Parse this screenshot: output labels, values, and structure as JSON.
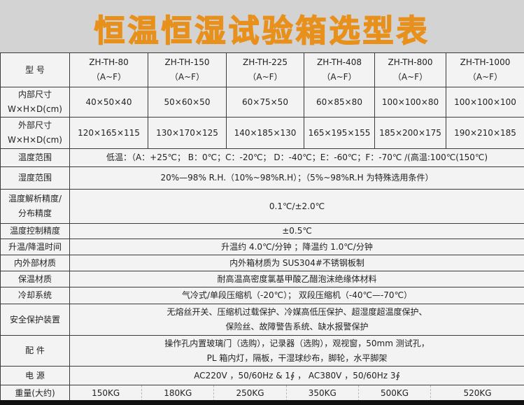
{
  "title": "恒温恒湿试验箱选型表",
  "colors": {
    "title": "#e8901c",
    "background": "#d3d3d3",
    "table_bg": "#f3f3f3"
  },
  "header": {
    "label": "型 号",
    "models": [
      [
        "ZH-TH-80",
        "（A~F）"
      ],
      [
        "ZH-TH-150",
        "（A~F）"
      ],
      [
        "ZH-TH-225",
        "（A~F）"
      ],
      [
        "ZH-TH-408",
        "（A~F）"
      ],
      [
        "ZH-TH-800",
        "（A~F）"
      ],
      [
        "ZH-TH-1000",
        "（A~F）"
      ]
    ]
  },
  "inner": {
    "label": [
      "内部尺寸",
      "W×H×D(cm)"
    ],
    "values": [
      "40×50×40",
      "50×60×50",
      "60×75×50",
      "60×85×80",
      "100×100×80",
      "100×100×100"
    ]
  },
  "outer": {
    "label": [
      "外部尺寸",
      "W×H×D(cm)"
    ],
    "values": [
      "120×165×115",
      "130×170×125",
      "140×185×130",
      "165×195×155",
      "185×200×175",
      "190×210×185"
    ]
  },
  "rows": [
    {
      "label": "温度范围",
      "value": "低温：（A：+25℃； B：0℃；C：-20℃； D：-40℃；E：-60℃；F：-70℃ /(高温:100℃(150℃)"
    },
    {
      "label": "湿度范围",
      "value": "20%—98% R.H.（10%~98%R.H）；（5%~98%R.H 为特殊选用条件）"
    },
    {
      "label": "温度解析精度/分布精度",
      "value": "0.1℃/±2.0℃"
    },
    {
      "label": "温度控制精度",
      "value": "±0.5℃"
    },
    {
      "label": "升温/降温时间",
      "value": "升温约 4.0℃/分钟 ；降温约 1.0℃/分钟"
    },
    {
      "label": "内外部材质",
      "value": "内外箱材质为 SUS304#不锈钢板制"
    },
    {
      "label": "保温材质",
      "value": "耐高温高密度氯基甲酸乙醋泡沫绝缘体材料"
    },
    {
      "label": "冷却系统",
      "value": "气冷式/单段压缩机（-20℃）； 双段压缩机（-40℃—-70℃）"
    }
  ],
  "safety": {
    "label": "安全保护装置",
    "lines": [
      "无熔丝开关、压缩机过载保护、冷媒高低压保护、超湿度超温度保护、",
      "保险丝、故障警告系统、缺水报警保护"
    ]
  },
  "accessories": {
    "label": "配 件",
    "lines": [
      "操作孔内置玻璃门（选购），记录器（选购），观视窗，50mm 测试孔，",
      "PL 箱内灯，隔板，干湿球纱布，脚轮，水平脚架"
    ]
  },
  "power": {
    "label": "电 源",
    "value": "AC220V ，50/60Hz & 1∮ ， AC380V ，50/60Hz 3∮"
  },
  "weight": {
    "label": "重量(大约)",
    "values": [
      "150KG",
      "180KG",
      "250KG",
      "350KG",
      "500KG",
      "520KG"
    ]
  }
}
